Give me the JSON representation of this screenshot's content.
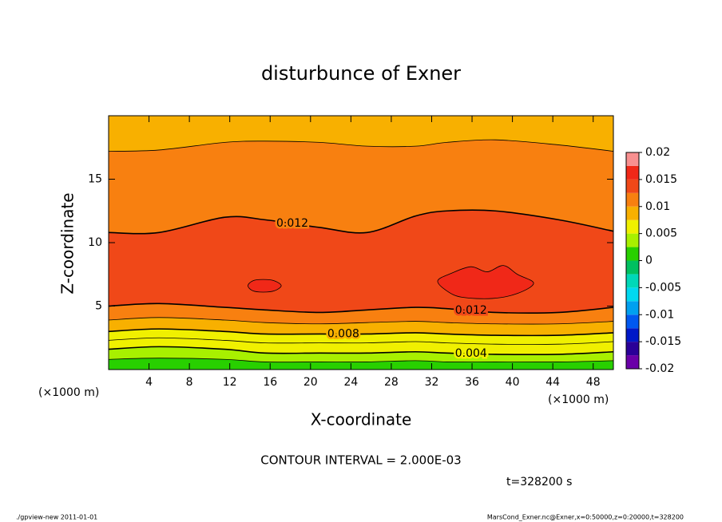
{
  "chart_data": {
    "type": "contour",
    "title": "disturbunce of Exner",
    "x_label": "X-coordinate",
    "y_label": "Z-coordinate",
    "x_unit": "(×1000 m)",
    "y_unit": "(×1000 m)",
    "xlim": [
      0,
      50
    ],
    "ylim": [
      0,
      20
    ],
    "xticks": [
      4,
      8,
      12,
      16,
      20,
      24,
      28,
      32,
      36,
      40,
      44,
      48
    ],
    "yticks": [
      5,
      10,
      15
    ],
    "contours": [
      {
        "level": 0.002,
        "segments": [
          {
            "x": [
              0,
              5,
              11.5,
              15.5,
              20.9,
              25.6,
              30.4,
              33.5,
              38.3,
              44.6,
              50
            ],
            "y": [
              0.8,
              0.9,
              0.8,
              0.6,
              0.6,
              0.6,
              0.7,
              0.6,
              0.6,
              0.6,
              0.7
            ]
          }
        ]
      },
      {
        "level": 0.004,
        "segments": [
          {
            "x": [
              0,
              5,
              11.5,
              15.5,
              20.9,
              25.6,
              30.4,
              33.5,
              38.3,
              44.6,
              50
            ],
            "y": [
              1.6,
              1.8,
              1.6,
              1.3,
              1.3,
              1.3,
              1.4,
              1.3,
              1.2,
              1.2,
              1.4
            ]
          }
        ]
      },
      {
        "level": 0.006,
        "segments": [
          {
            "x": [
              0,
              5,
              11.5,
              15.5,
              20.9,
              25.6,
              30.4,
              33.5,
              38.3,
              44.6,
              50
            ],
            "y": [
              2.3,
              2.5,
              2.3,
              2.1,
              2.1,
              2.1,
              2.2,
              2.1,
              2.0,
              2.0,
              2.2
            ]
          }
        ]
      },
      {
        "level": 0.008,
        "segments": [
          {
            "x": [
              0,
              5,
              11.5,
              15.5,
              20.9,
              25.6,
              30.4,
              33.5,
              38.3,
              44.6,
              50
            ],
            "y": [
              3.0,
              3.2,
              3.0,
              2.8,
              2.8,
              2.8,
              2.9,
              2.8,
              2.7,
              2.7,
              2.9
            ]
          }
        ]
      },
      {
        "level": 0.01,
        "segments": [
          {
            "x": [
              0,
              5,
              11.5,
              15.5,
              20.9,
              25.6,
              30.4,
              33.5,
              38.3,
              44.6,
              50
            ],
            "y": [
              3.9,
              4.1,
              3.9,
              3.7,
              3.6,
              3.7,
              3.8,
              3.7,
              3.6,
              3.6,
              3.8
            ]
          },
          {
            "x": [
              0,
              5,
              11.5,
              15.5,
              20.9,
              25.6,
              30.4,
              33.5,
              38.3,
              44.6,
              50
            ],
            "y": [
              17.2,
              17.3,
              17.9,
              18.0,
              17.9,
              17.6,
              17.6,
              17.9,
              18.1,
              17.7,
              17.2
            ]
          }
        ]
      },
      {
        "level": 0.012,
        "segments": [
          {
            "x": [
              0,
              5,
              11.5,
              15.5,
              20.9,
              25.6,
              30.4,
              33.5,
              38.3,
              44.6,
              50
            ],
            "y": [
              5.0,
              5.2,
              4.9,
              4.7,
              4.5,
              4.7,
              4.9,
              4.8,
              4.5,
              4.5,
              4.9
            ]
          },
          {
            "x": [
              0,
              5,
              11.5,
              15.5,
              20.9,
              25.6,
              30.4,
              33.5,
              38.3,
              44.6,
              50
            ],
            "y": [
              10.8,
              10.8,
              12.0,
              11.8,
              11.2,
              10.8,
              12.1,
              12.5,
              12.5,
              11.8,
              10.9
            ]
          }
        ]
      },
      {
        "level": 0.014,
        "segments": [
          {
            "x": [
              13.8,
              14.3,
              15.3,
              16.4,
              17.1,
              16.4,
              15.3,
              14.3,
              13.8
            ],
            "y": [
              6.6,
              7.0,
              7.1,
              7.0,
              6.6,
              6.2,
              6.1,
              6.2,
              6.6
            ]
          },
          {
            "x": [
              32.6,
              34.0,
              35.9,
              37.5,
              39.1,
              40.5,
              42.1,
              40.5,
              38.0,
              35.0,
              33.5,
              32.6
            ],
            "y": [
              7.0,
              7.6,
              8.1,
              7.7,
              8.2,
              7.5,
              6.8,
              6.0,
              5.6,
              5.7,
              6.2,
              7.0
            ]
          }
        ]
      }
    ],
    "colorbar": {
      "levels": [
        -0.02,
        -0.0175,
        -0.015,
        -0.0125,
        -0.01,
        -0.0075,
        -0.005,
        -0.0025,
        0,
        0.0025,
        0.005,
        0.0075,
        0.01,
        0.0125,
        0.015,
        0.0175,
        0.02
      ],
      "colors": [
        "#6a00a8",
        "#2a0098",
        "#0018c8",
        "#0058f0",
        "#00a0f0",
        "#00d8f0",
        "#00d8b8",
        "#00c060",
        "#28d000",
        "#a8f000",
        "#f0f000",
        "#f8b000",
        "#f88010",
        "#f04818",
        "#f02818",
        "#f89090"
      ],
      "ticks": [
        -0.02,
        -0.015,
        -0.01,
        -0.005,
        0,
        0.005,
        0.01,
        0.015,
        0.02
      ]
    },
    "contour_interval_text": "CONTOUR INTERVAL = 2.000E-03",
    "time_text": "t=328200 s",
    "footer_left": "./gpview-new   2011-01-01",
    "footer_right": "MarsCond_Exner.nc@Exner,x=0:50000,z=0:20000,t=328200"
  }
}
